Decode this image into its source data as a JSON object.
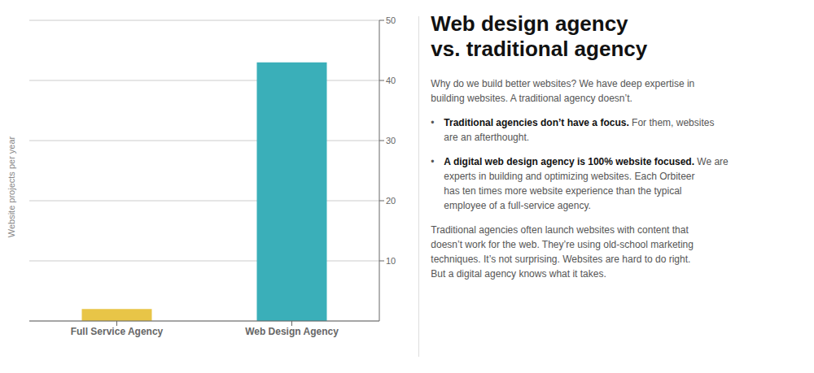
{
  "chart_data": {
    "type": "bar",
    "title": "Web design agency\nvs. traditional agency",
    "categories": [
      "Full Service Agency",
      "Web Design Agency"
    ],
    "values": [
      2,
      43
    ],
    "colors": [
      "#E8C547",
      "#3AAFB9"
    ],
    "ylabel": "Website projects per year",
    "ylim": [
      0,
      50
    ],
    "yticks": [
      10,
      20,
      30,
      40,
      50
    ],
    "grid": true,
    "annotations": [
      "Why do we build better websites? We have deep expertise in\nbuilding websites. A traditional agency doesn’t.",
      "• Traditional agencies don’t have a focus. For them, websites\nare an afterthought.",
      "• A digital web design agency is 100% website focused. We are\nexperts in building and optimizing websites. Each Orbiteer\nhas ten times more website experience than the typical\nemployee of a full-service agency.",
      "Traditional agencies often launch websites with content that\ndoesn’t work for the web. They’re using old-school marketing\ntechniques. It’s not surprising. Websites are hard to do right.\nBut a digital agency knows what it takes."
    ]
  }
}
